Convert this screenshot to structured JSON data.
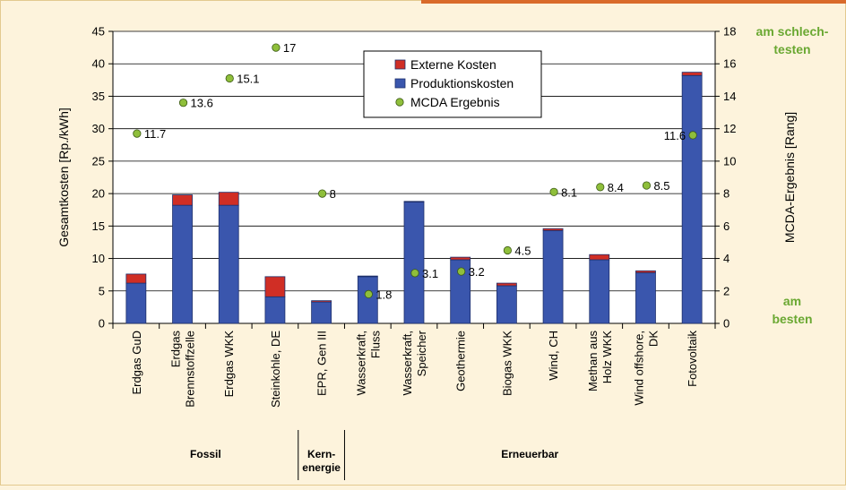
{
  "chart_data": {
    "type": "bar",
    "stacked": true,
    "categories": [
      [
        "Erdgas GuD"
      ],
      [
        "Erdgas",
        "Brennstoffzelle"
      ],
      [
        "Erdgas WKK"
      ],
      [
        "Steinkohle, DE"
      ],
      [
        "EPR, Gen III"
      ],
      [
        "Wasserkraft,",
        "Fluss"
      ],
      [
        "Wasserkraft,",
        "Speicher"
      ],
      [
        "Geothermie"
      ],
      [
        "Biogas WKK"
      ],
      [
        "Wind, CH"
      ],
      [
        "Methan aus",
        "Holz WKK"
      ],
      [
        "Wind offshore,",
        "DK"
      ],
      [
        "Fotovoltaik"
      ]
    ],
    "series": [
      {
        "name": "Produktionskosten",
        "color": "#3a56ad",
        "values": [
          6.2,
          18.2,
          18.2,
          4.1,
          3.3,
          7.2,
          18.7,
          9.8,
          5.8,
          14.3,
          9.8,
          7.8,
          38.2
        ]
      },
      {
        "name": "Externe Kosten",
        "color": "#d02e25",
        "values": [
          1.4,
          1.6,
          2.0,
          3.1,
          0.2,
          0.1,
          0.1,
          0.4,
          0.4,
          0.3,
          0.8,
          0.3,
          0.5
        ]
      }
    ],
    "mcda": {
      "name": "MCDA Ergebnis",
      "color": "#8fbf3b",
      "values": [
        11.7,
        13.6,
        15.1,
        17,
        8,
        1.8,
        3.1,
        3.2,
        4.5,
        8.1,
        8.4,
        8.5,
        11.6
      ],
      "labels": [
        "11.7",
        "13.6",
        "15.1",
        "17",
        "8",
        "1.8",
        "3.1",
        "3.2",
        "4.5",
        "8.1",
        "8.4",
        "8.5",
        "11.6"
      ],
      "label_side": [
        "right",
        "right",
        "right",
        "right",
        "right",
        "right",
        "right",
        "right",
        "right",
        "right",
        "right",
        "right",
        "left"
      ]
    },
    "ylabel": "Gesamtkosten [Rp./kWh]",
    "ylim": [
      0,
      45
    ],
    "yticks": [
      "0",
      "5",
      "10",
      "15",
      "20",
      "25",
      "30",
      "35",
      "40",
      "45"
    ],
    "y2label": "MCDA-Ergebnis [Rang]",
    "y2lim": [
      0,
      18
    ],
    "y2ticks": [
      "0",
      "2",
      "4",
      "6",
      "8",
      "10",
      "12",
      "14",
      "16",
      "18"
    ],
    "y2_top_note": [
      "am schlech-",
      "testen"
    ],
    "y2_bottom_note": [
      "am",
      "besten"
    ],
    "note_color": "#6aa832",
    "groups": [
      {
        "label": [
          "Fossil"
        ],
        "from": 0,
        "to": 3
      },
      {
        "label": [
          "Kern-",
          "energie"
        ],
        "from": 4,
        "to": 4
      },
      {
        "label": [
          "Erneuerbar"
        ],
        "from": 5,
        "to": 12
      }
    ],
    "legend": {
      "items": [
        "Externe Kosten",
        "Produktionskosten",
        "MCDA Ergebnis"
      ],
      "position": "top-center"
    },
    "grid": true
  }
}
